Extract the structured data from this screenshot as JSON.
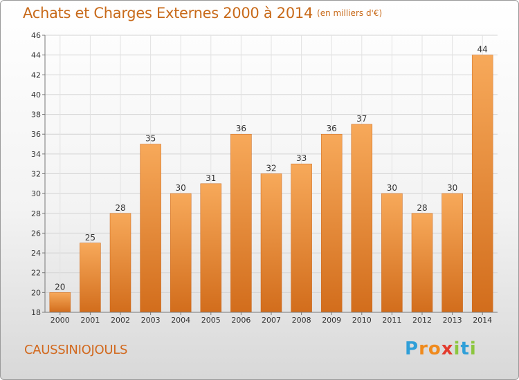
{
  "header": {
    "title": "Achats et Charges Externes 2000 à 2014",
    "unit": "(en milliers d'€)"
  },
  "footer": {
    "commune": "CAUSSINIOJOULS",
    "logo": {
      "letters": [
        "P",
        "r",
        "o",
        "x",
        "i",
        "t",
        "i"
      ],
      "colors": [
        "#2f9fd8",
        "#f08a1c",
        "#f08a1c",
        "#e33b2e",
        "#8cc63f",
        "#2f9fd8",
        "#8cc63f"
      ]
    }
  },
  "colors": {
    "bar_top": "#f7a95a",
    "bar_bottom": "#d26d1c",
    "title": "#c86a1a"
  },
  "chart_data": {
    "type": "bar",
    "title": "Achats et Charges Externes 2000 à 2014",
    "ylabel": "en milliers d'€",
    "xlabel": "",
    "categories": [
      "2000",
      "2001",
      "2002",
      "2003",
      "2004",
      "2005",
      "2006",
      "2007",
      "2008",
      "2009",
      "2010",
      "2011",
      "2012",
      "2013",
      "2014"
    ],
    "values": [
      20,
      25,
      28,
      35,
      30,
      31,
      36,
      32,
      33,
      36,
      37,
      30,
      28,
      30,
      44
    ],
    "ylim": [
      18,
      46
    ],
    "yticks": [
      18,
      20,
      22,
      24,
      26,
      28,
      30,
      32,
      34,
      36,
      38,
      40,
      42,
      44,
      46
    ],
    "grid": true
  }
}
